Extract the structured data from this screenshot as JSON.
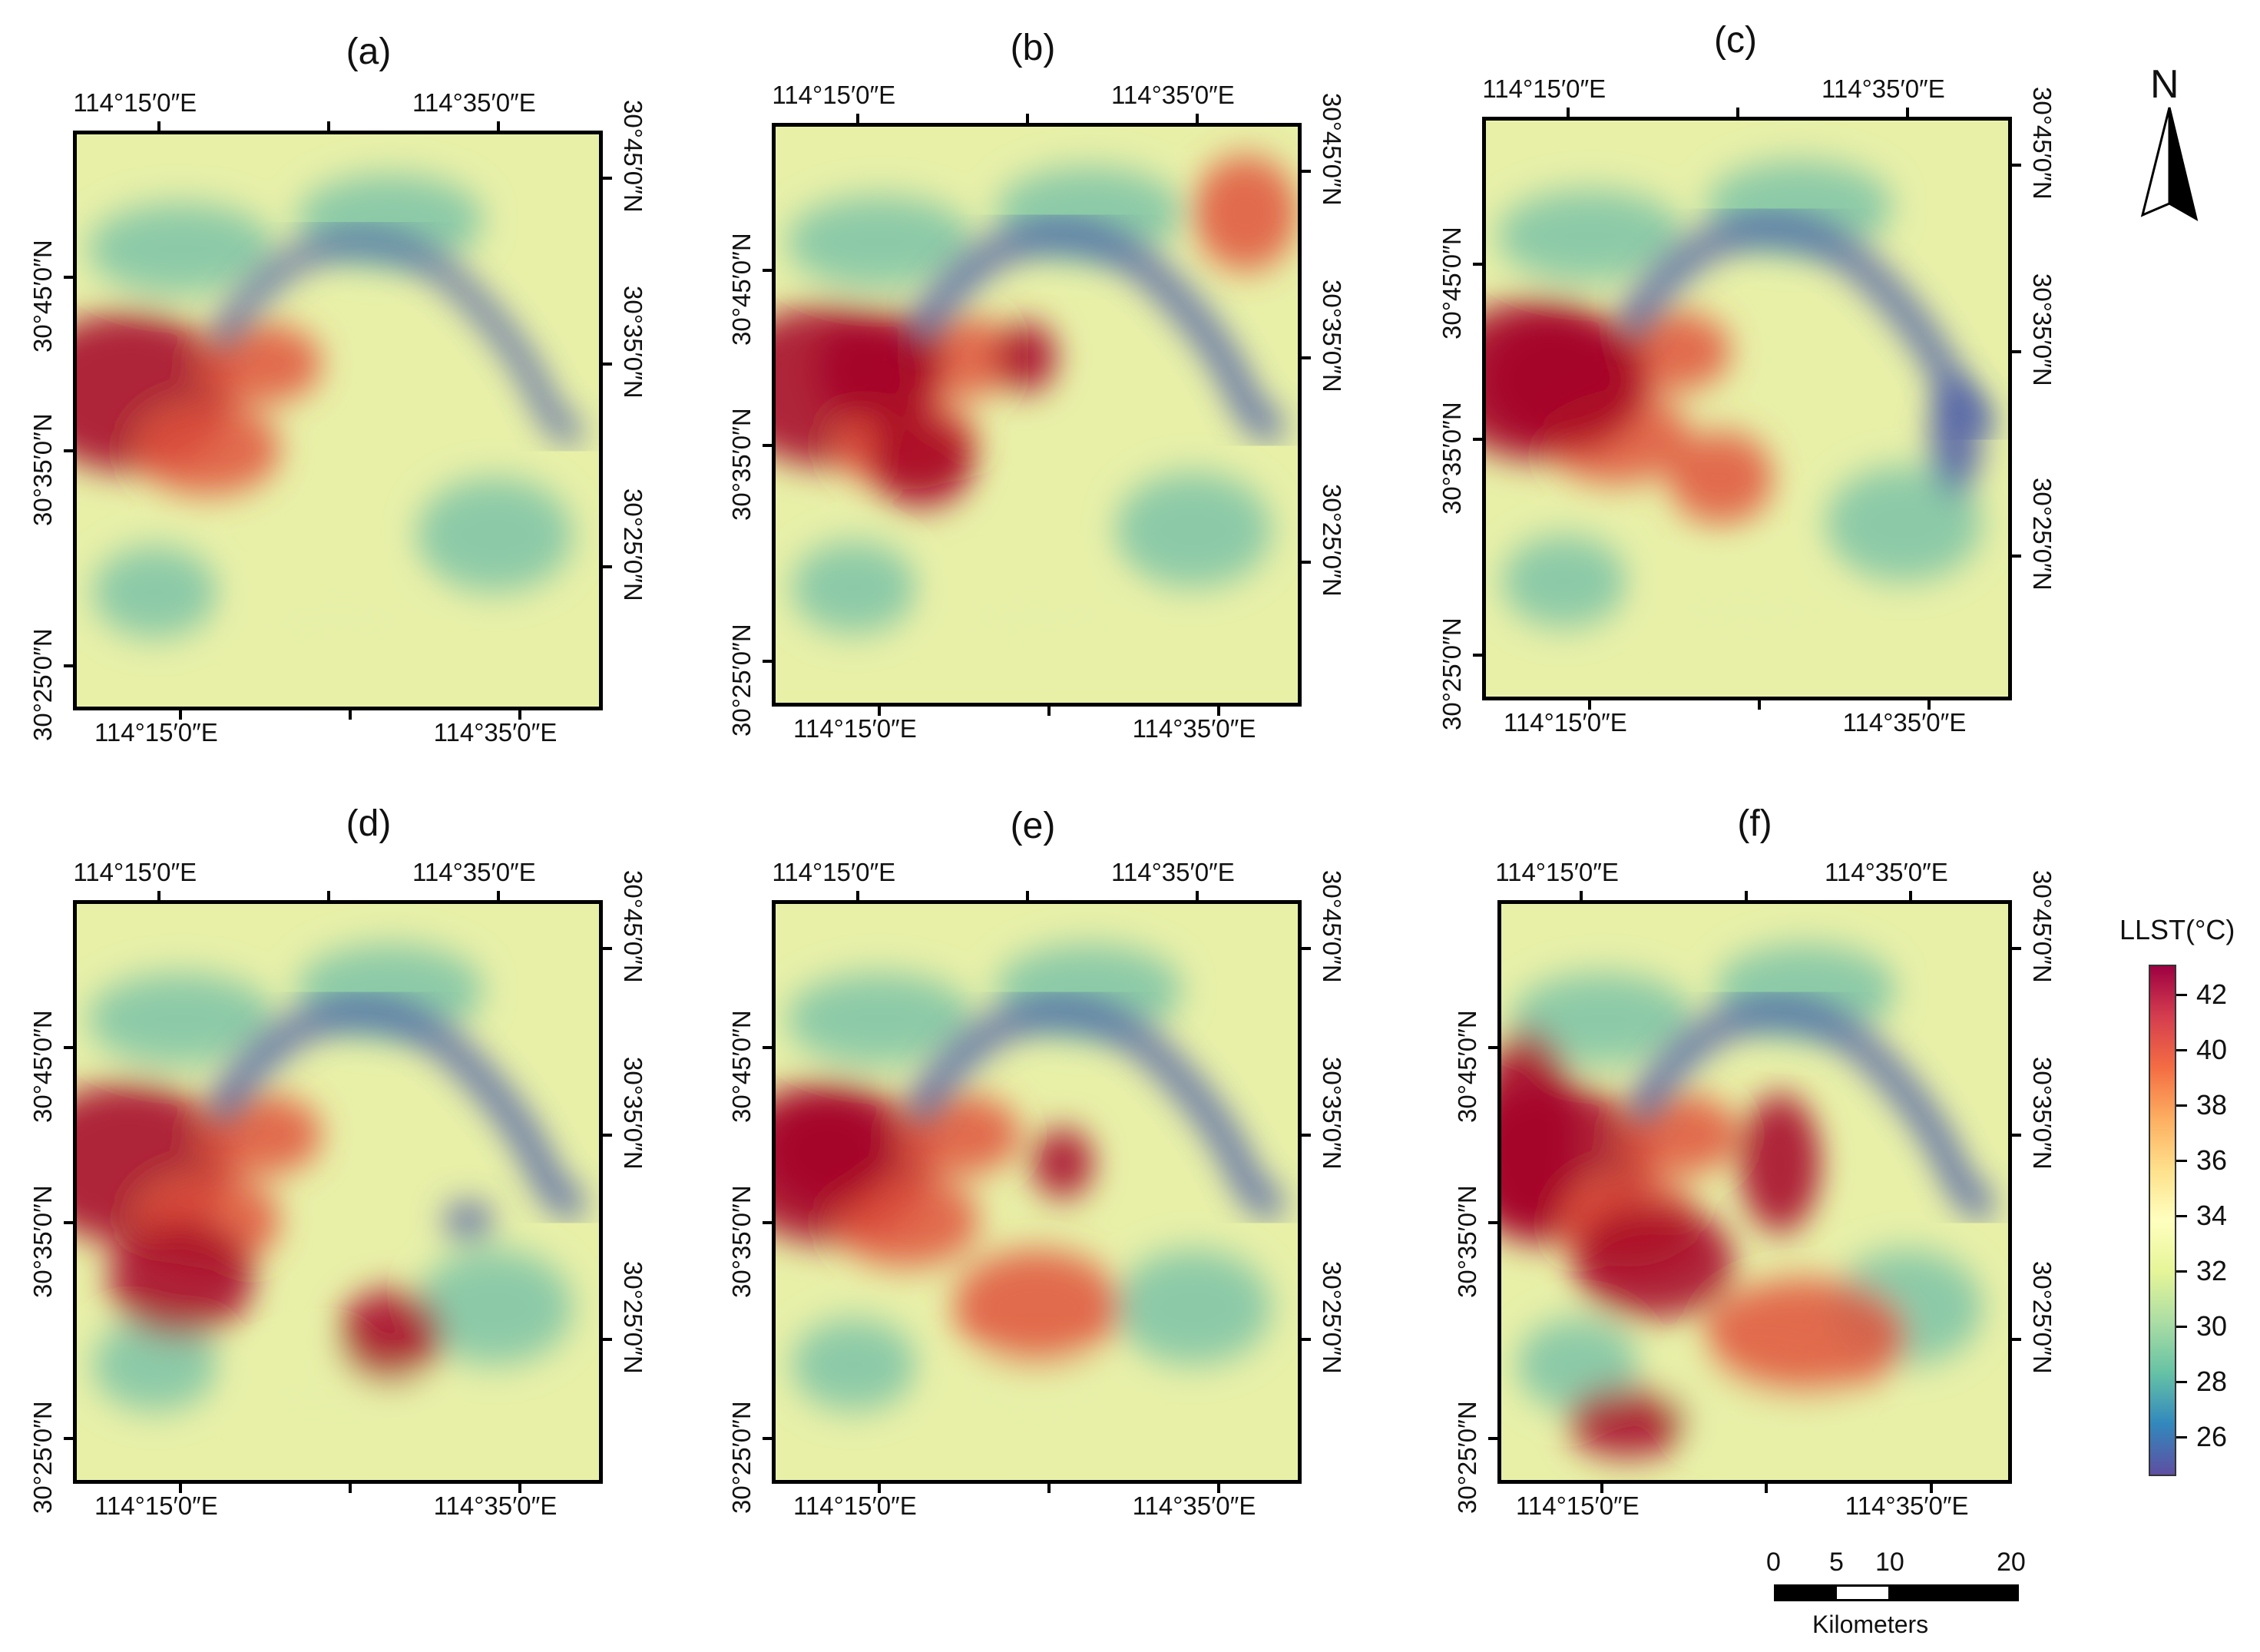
{
  "panels": [
    {
      "label": "(a)"
    },
    {
      "label": "(b)"
    },
    {
      "label": "(c)"
    },
    {
      "label": "(d)"
    },
    {
      "label": "(e)"
    },
    {
      "label": "(f)"
    }
  ],
  "coords": {
    "lon_top_1": "114°15′0″E",
    "lon_top_2": "114°35′0″E",
    "lon_bottom_1": "114°15′0″E",
    "lon_bottom_2": "114°35′0″E",
    "lat_left_1": "30°45′0″N",
    "lat_left_2": "30°35′0″N",
    "lat_left_3": "30°25′0″N",
    "lat_right_1": "30°45′0″N",
    "lat_right_2": "30°35′0″N",
    "lat_right_3": "30°25′0″N"
  },
  "north_arrow": {
    "label": "N"
  },
  "legend": {
    "title": "LLST(°C)",
    "ticks": [
      "42",
      "40",
      "38",
      "36",
      "34",
      "32",
      "30",
      "28",
      "26"
    ],
    "colors": [
      "#9e0142",
      "#d53e4f",
      "#f46d43",
      "#fdae61",
      "#fee08b",
      "#ffffbf",
      "#e6f598",
      "#abdda4",
      "#66c2a5",
      "#3288bd",
      "#5e4fa2"
    ]
  },
  "scalebar": {
    "ticks": [
      "0",
      "5",
      "10",
      "20"
    ],
    "unit": "Kilometers"
  },
  "colors": {
    "hot": "#a50026",
    "warm": "#e0533c",
    "neutral": "#e8f0a8",
    "cool": "#7cc3a7",
    "water": "#4a5aa8"
  }
}
